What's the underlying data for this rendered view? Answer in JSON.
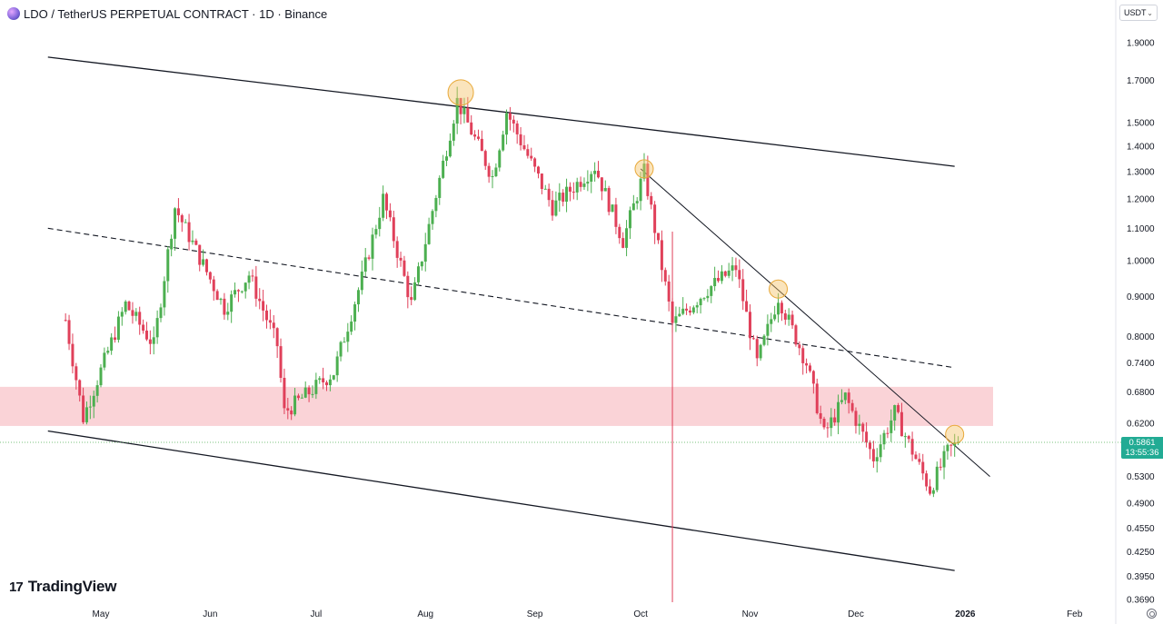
{
  "header": {
    "title": "LDO / TetherUS PERPETUAL CONTRACT · 1D · Binance",
    "currency": "USDT"
  },
  "brand": {
    "name": "TradingView",
    "mark": "17"
  },
  "last_price": {
    "value": "0.5861",
    "countdown": "13:55:36",
    "color": "#22ab94"
  },
  "colors": {
    "up": "#4caf50",
    "down": "#e0405a",
    "zone": "#f7b6bd",
    "highlight": "#f5c46a",
    "channel": "#131722"
  },
  "chart_data": {
    "type": "candlestick",
    "scale": "log",
    "ylim": [
      0.369,
      2.0
    ],
    "price_ticks": [
      "1.9000",
      "1.7000",
      "1.5000",
      "1.4000",
      "1.3000",
      "1.2000",
      "1.1000",
      "1.0000",
      "0.9000",
      "0.8000",
      "0.7400",
      "0.6800",
      "0.6200",
      "0.5300",
      "0.4900",
      "0.4550",
      "0.4250",
      "0.3950",
      "0.3690"
    ],
    "time_ticks": [
      "May",
      "Jun",
      "Jul",
      "Aug",
      "Sep",
      "Oct",
      "Nov",
      "Dec",
      "2026",
      "Feb"
    ],
    "date_range": [
      "2025-04-21",
      "2025-12-30"
    ],
    "key_points": [
      {
        "date": "2025-04-21",
        "price": 0.84
      },
      {
        "date": "2025-04-26",
        "price": 0.63
      },
      {
        "date": "2025-05-08",
        "price": 0.88
      },
      {
        "date": "2025-05-16",
        "price": 0.78
      },
      {
        "date": "2025-05-22",
        "price": 1.17
      },
      {
        "date": "2025-06-05",
        "price": 0.87
      },
      {
        "date": "2025-06-12",
        "price": 0.96
      },
      {
        "date": "2025-06-20",
        "price": 0.78
      },
      {
        "date": "2025-06-22",
        "price": 0.64
      },
      {
        "date": "2025-07-06",
        "price": 0.72
      },
      {
        "date": "2025-07-14",
        "price": 0.95
      },
      {
        "date": "2025-07-20",
        "price": 1.2
      },
      {
        "date": "2025-07-28",
        "price": 0.88
      },
      {
        "date": "2025-08-10",
        "price": 1.6
      },
      {
        "date": "2025-08-20",
        "price": 1.28
      },
      {
        "date": "2025-08-24",
        "price": 1.55
      },
      {
        "date": "2025-09-06",
        "price": 1.17
      },
      {
        "date": "2025-09-18",
        "price": 1.32
      },
      {
        "date": "2025-09-26",
        "price": 1.06
      },
      {
        "date": "2025-10-02",
        "price": 1.3
      },
      {
        "date": "2025-10-10",
        "price": 0.83
      },
      {
        "date": "2025-10-20",
        "price": 0.92
      },
      {
        "date": "2025-10-28",
        "price": 0.98
      },
      {
        "date": "2025-11-03",
        "price": 0.74
      },
      {
        "date": "2025-11-09",
        "price": 0.9
      },
      {
        "date": "2025-11-17",
        "price": 0.74
      },
      {
        "date": "2025-11-22",
        "price": 0.6
      },
      {
        "date": "2025-11-28",
        "price": 0.67
      },
      {
        "date": "2025-12-06",
        "price": 0.56
      },
      {
        "date": "2025-12-12",
        "price": 0.64
      },
      {
        "date": "2025-12-22",
        "price": 0.51
      },
      {
        "date": "2025-12-27",
        "price": 0.57
      },
      {
        "date": "2025-12-30",
        "price": 0.5861
      }
    ],
    "upper_channel": {
      "from": {
        "date": "2025-04-16",
        "price": 1.82
      },
      "to": {
        "date": "2025-12-29",
        "price": 1.32
      }
    },
    "lower_channel": {
      "from": {
        "date": "2025-04-16",
        "price": 0.606
      },
      "to": {
        "date": "2025-12-29",
        "price": 0.402
      }
    },
    "mid_channel": {
      "from": {
        "date": "2025-04-16",
        "price": 1.1
      },
      "to": {
        "date": "2025-12-29",
        "price": 0.73
      }
    },
    "descending_trendline": {
      "from": {
        "date": "2025-10-01",
        "price": 1.31
      },
      "to": {
        "date": "2026-01-08",
        "price": 0.53
      }
    },
    "resistance_zone": [
      0.615,
      0.69
    ],
    "event_marker": {
      "date": "2025-10-10"
    },
    "highlights": [
      {
        "date": "2025-08-11",
        "price": 1.64
      },
      {
        "date": "2025-10-02",
        "price": 1.31
      },
      {
        "date": "2025-11-09",
        "price": 0.92
      },
      {
        "date": "2025-12-29",
        "price": 0.6
      }
    ]
  }
}
